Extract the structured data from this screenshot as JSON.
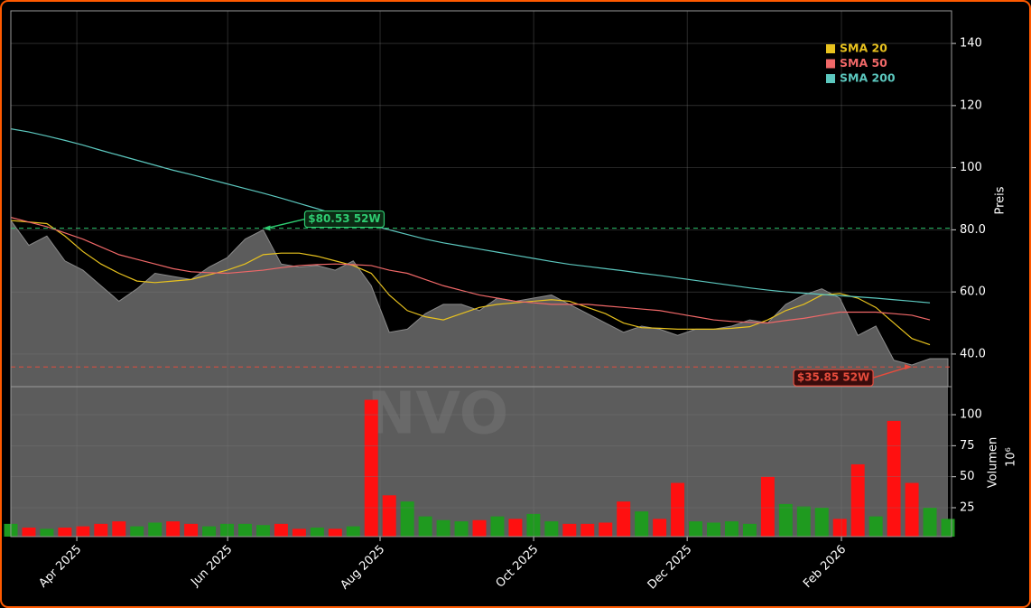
{
  "chart_data": [
    {
      "type": "line",
      "watermark": "NVO",
      "y_label": "Preis",
      "xlim": [
        0,
        52
      ],
      "ylim": [
        29.5,
        150.5
      ],
      "yticks": [
        {
          "value": 40,
          "label": "40.0"
        },
        {
          "value": 60,
          "label": "60.0"
        },
        {
          "value": 80,
          "label": "80.0"
        },
        100,
        120,
        140
      ],
      "grid": true,
      "legend": "upper right",
      "area_color": "#5c5c5c",
      "close": [
        83,
        75,
        78,
        70,
        67,
        62,
        57,
        61,
        66,
        65,
        64,
        68,
        71,
        77,
        80,
        69,
        68,
        68.5,
        67,
        70,
        62,
        47,
        48,
        53,
        56,
        56,
        54,
        58,
        57,
        58,
        59,
        56,
        53,
        50,
        47,
        49,
        48,
        46,
        48,
        48,
        49,
        51,
        50,
        56,
        59,
        61,
        58,
        46,
        49,
        38,
        36.5,
        38.5,
        38.5
      ],
      "series": [
        {
          "name": "SMA 20",
          "color": "#e8c21e",
          "values": [
            83,
            82.5,
            82,
            78,
            73,
            69,
            66,
            63.5,
            63,
            63.5,
            64,
            65.5,
            67,
            69,
            72,
            72.5,
            72.5,
            71.5,
            70,
            68.5,
            66,
            59,
            54,
            52,
            51,
            53,
            55,
            56,
            56.5,
            57,
            57.5,
            57,
            55,
            53,
            50,
            48.5,
            48.3,
            48,
            48,
            48,
            48.3,
            48.8,
            51,
            54,
            56,
            59,
            59.5,
            58,
            55,
            50,
            45,
            43,
            null
          ]
        },
        {
          "name": "SMA 50",
          "color": "#f06868",
          "values": [
            84,
            82.5,
            81,
            79,
            77,
            74.5,
            72,
            70.5,
            69,
            67.5,
            66.5,
            66.2,
            66,
            66.5,
            67,
            67.8,
            68.5,
            68.8,
            69,
            68.8,
            68.5,
            67,
            66,
            64,
            62,
            60.5,
            59,
            58,
            57,
            56.5,
            56,
            56,
            56,
            55.5,
            55,
            54.5,
            54,
            53,
            52,
            51,
            50.5,
            50.2,
            50,
            50.8,
            51.5,
            52.5,
            53.5,
            53.5,
            53.5,
            53,
            52.5,
            51,
            null
          ]
        },
        {
          "name": "SMA 200",
          "color": "#5cc8bf",
          "values": [
            112.5,
            111.5,
            110.2,
            108.8,
            107.3,
            105.6,
            104,
            102.4,
            100.8,
            99.2,
            97.8,
            96.3,
            94.8,
            93.3,
            91.8,
            90.2,
            88.5,
            86.8,
            85,
            83.3,
            81.5,
            80,
            78.5,
            77,
            75.8,
            74.8,
            73.8,
            72.8,
            71.8,
            70.8,
            69.8,
            68.9,
            68.2,
            67.5,
            66.8,
            66,
            65.3,
            64.5,
            63.7,
            62.9,
            62.1,
            61.3,
            60.6,
            60,
            59.6,
            59.2,
            58.8,
            58.4,
            58,
            57.5,
            57,
            56.5,
            null
          ]
        }
      ],
      "annotations": [
        {
          "text": "$80.53 52W",
          "value": 80.53,
          "index": 14,
          "color": "#2ecc71"
        },
        {
          "text": "$35.85 52W",
          "value": 35.85,
          "index": 50,
          "color": "#e74c3c"
        }
      ]
    },
    {
      "type": "bar",
      "y_label": "Volumen",
      "y_exponent": "10⁶",
      "xlim": [
        0,
        52
      ],
      "ylim": [
        1.7,
        122.6
      ],
      "yticks": [
        25,
        50,
        75,
        100
      ],
      "xticks": [
        {
          "value": 3.66,
          "label": "Apr 2025"
        },
        {
          "value": 12.03,
          "label": "Jun 2025"
        },
        {
          "value": 20.49,
          "label": "Aug 2025"
        },
        {
          "value": 29.01,
          "label": "Oct 2025"
        },
        {
          "value": 37.53,
          "label": "Dec 2025"
        },
        {
          "value": 46.09,
          "label": "Feb 2026"
        }
      ],
      "grid": true,
      "up_color": "#1f9a1f",
      "down_color": "#ff1010",
      "values": [
        12,
        9,
        8,
        9,
        10,
        12,
        14,
        10,
        13,
        14,
        12,
        10,
        12,
        12,
        11,
        12,
        8,
        9,
        8,
        10,
        112,
        35,
        30,
        18,
        15,
        14,
        15,
        18,
        16,
        20,
        14,
        12,
        12,
        13,
        30,
        22,
        16,
        45,
        14,
        13,
        14,
        12,
        50,
        28,
        26,
        25,
        16,
        60,
        18,
        95,
        45,
        25,
        16
      ]
    }
  ]
}
